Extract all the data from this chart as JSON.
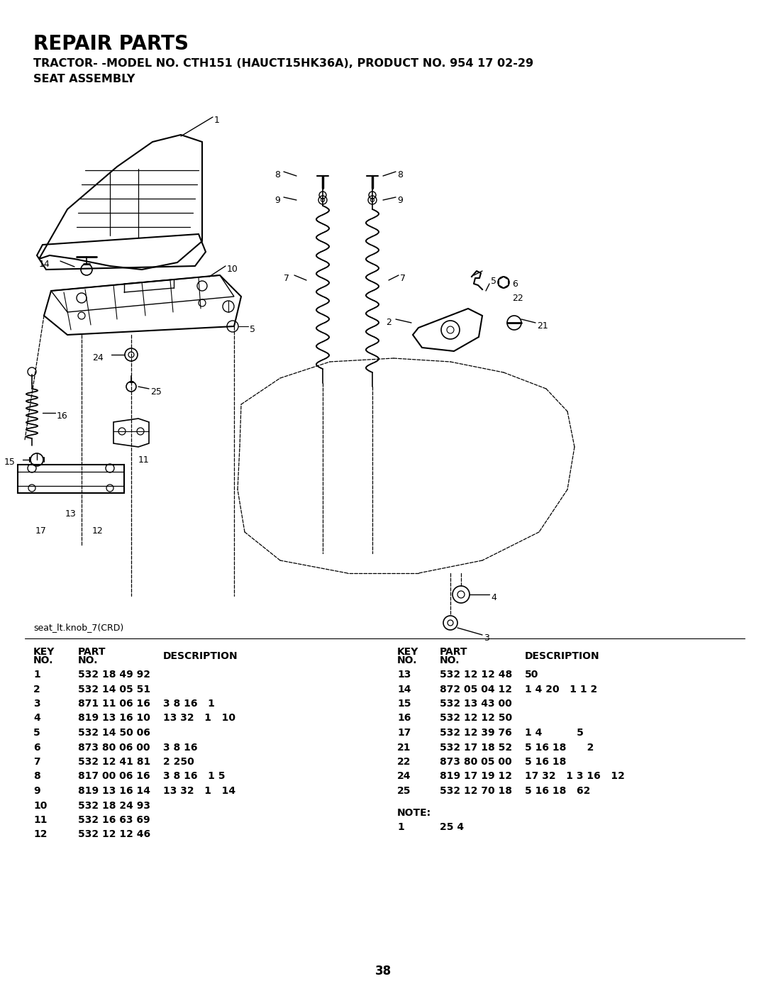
{
  "title": "REPAIR PARTS",
  "subtitle": "TRACTOR- -MODEL NO. CTH151 (HAUCT15HK36A), PRODUCT NO. 954 17 02-29",
  "subtitle2": "SEAT ASSEMBLY",
  "image_label": "seat_lt.knob_7(CRD)",
  "page_number": "38",
  "bg_color": "#ffffff",
  "text_color": "#000000",
  "table_left": {
    "rows": [
      [
        "1",
        "532 18 49 92",
        ""
      ],
      [
        "2",
        "532 14 05 51",
        ""
      ],
      [
        "3",
        "871 11 06 16",
        "3 8 16   1"
      ],
      [
        "4",
        "819 13 16 10",
        "13 32   1   10"
      ],
      [
        "5",
        "532 14 50 06",
        ""
      ],
      [
        "6",
        "873 80 06 00",
        "3 8 16"
      ],
      [
        "7",
        "532 12 41 81",
        "2 250"
      ],
      [
        "8",
        "817 00 06 16",
        "3 8 16   1 5"
      ],
      [
        "9",
        "819 13 16 14",
        "13 32   1   14"
      ],
      [
        "10",
        "532 18 24 93",
        ""
      ],
      [
        "11",
        "532 16 63 69",
        ""
      ],
      [
        "12",
        "532 12 12 46",
        ""
      ]
    ]
  },
  "table_right": {
    "rows": [
      [
        "13",
        "532 12 12 48",
        "50"
      ],
      [
        "14",
        "872 05 04 12",
        "1 4 20   1 1 2"
      ],
      [
        "15",
        "532 13 43 00",
        ""
      ],
      [
        "16",
        "532 12 12 50",
        ""
      ],
      [
        "17",
        "532 12 39 76",
        "1 4          5"
      ],
      [
        "21",
        "532 17 18 52",
        "5 16 18      2"
      ],
      [
        "22",
        "873 80 05 00",
        "5 16 18"
      ],
      [
        "24",
        "819 17 19 12",
        "17 32   1 3 16   12"
      ],
      [
        "25",
        "532 12 70 18",
        "5 16 18   62"
      ]
    ]
  },
  "note": "NOTE:",
  "note_rows": [
    [
      "1",
      "25 4"
    ]
  ]
}
